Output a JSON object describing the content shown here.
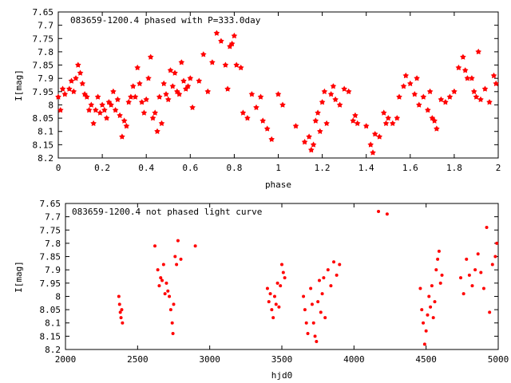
{
  "chart_data": [
    {
      "type": "scatter",
      "title": "083659-1200.4 phased with P=333.0day",
      "xlabel": "phase",
      "ylabel": "I[mag]",
      "xlim": [
        0,
        2
      ],
      "ylim": [
        7.65,
        8.2
      ],
      "y_inverted": true,
      "marker": "star",
      "color": "#ff0000",
      "xticks": [
        "0",
        "0.2",
        "0.4",
        "0.6",
        "0.8",
        "1",
        "1.2",
        "1.4",
        "1.6",
        "1.8",
        "2"
      ],
      "yticks": [
        "7.65",
        "7.7",
        "7.75",
        "7.8",
        "7.85",
        "7.9",
        "7.95",
        "8",
        "8.05",
        "8.1",
        "8.15",
        "8.2"
      ],
      "series": [
        {
          "points": [
            [
              0.0,
              7.97
            ],
            [
              0.01,
              8.02
            ],
            [
              0.02,
              7.94
            ],
            [
              0.03,
              7.96
            ],
            [
              0.05,
              7.94
            ],
            [
              0.06,
              7.91
            ],
            [
              0.07,
              7.95
            ],
            [
              0.08,
              7.9
            ],
            [
              0.09,
              7.85
            ],
            [
              0.1,
              7.88
            ],
            [
              0.11,
              7.92
            ],
            [
              0.12,
              7.96
            ],
            [
              0.13,
              7.97
            ],
            [
              0.14,
              8.02
            ],
            [
              0.15,
              8.0
            ],
            [
              0.16,
              8.07
            ],
            [
              0.17,
              8.02
            ],
            [
              0.18,
              7.97
            ],
            [
              0.19,
              8.03
            ],
            [
              0.2,
              8.0
            ],
            [
              0.21,
              8.02
            ],
            [
              0.22,
              8.05
            ],
            [
              0.23,
              7.99
            ],
            [
              0.24,
              8.0
            ],
            [
              0.25,
              7.95
            ],
            [
              0.26,
              8.02
            ],
            [
              0.27,
              7.98
            ],
            [
              0.28,
              8.04
            ],
            [
              0.29,
              8.12
            ],
            [
              0.3,
              8.06
            ],
            [
              0.31,
              8.08
            ],
            [
              0.32,
              7.99
            ],
            [
              0.33,
              7.97
            ],
            [
              0.34,
              7.93
            ],
            [
              0.35,
              7.97
            ],
            [
              0.36,
              7.86
            ],
            [
              0.37,
              7.92
            ],
            [
              0.38,
              7.99
            ],
            [
              0.39,
              8.03
            ],
            [
              0.4,
              7.98
            ],
            [
              0.41,
              7.9
            ],
            [
              0.42,
              7.82
            ],
            [
              0.43,
              8.05
            ],
            [
              0.44,
              8.03
            ],
            [
              0.45,
              8.1
            ],
            [
              0.46,
              7.97
            ],
            [
              0.47,
              8.07
            ],
            [
              0.48,
              7.92
            ],
            [
              0.49,
              7.96
            ],
            [
              0.5,
              7.98
            ],
            [
              0.51,
              7.87
            ],
            [
              0.52,
              7.93
            ],
            [
              0.53,
              7.88
            ],
            [
              0.54,
              7.95
            ],
            [
              0.55,
              7.96
            ],
            [
              0.56,
              7.84
            ],
            [
              0.57,
              7.91
            ],
            [
              0.58,
              7.94
            ],
            [
              0.59,
              7.93
            ],
            [
              0.6,
              7.9
            ],
            [
              0.61,
              8.01
            ],
            [
              0.64,
              7.91
            ],
            [
              0.66,
              7.81
            ],
            [
              0.68,
              7.95
            ],
            [
              0.7,
              7.84
            ],
            [
              0.72,
              7.73
            ],
            [
              0.74,
              7.76
            ],
            [
              0.76,
              7.85
            ],
            [
              0.77,
              7.94
            ],
            [
              0.78,
              7.78
            ],
            [
              0.79,
              7.77
            ],
            [
              0.8,
              7.74
            ],
            [
              0.81,
              7.85
            ],
            [
              0.83,
              7.86
            ],
            [
              0.84,
              8.03
            ],
            [
              0.86,
              8.05
            ],
            [
              0.88,
              7.96
            ],
            [
              0.9,
              8.01
            ],
            [
              0.92,
              7.97
            ],
            [
              0.93,
              8.06
            ],
            [
              0.95,
              8.09
            ],
            [
              0.97,
              8.13
            ],
            [
              1.0,
              7.96
            ],
            [
              1.02,
              8.0
            ],
            [
              1.08,
              8.08
            ],
            [
              1.12,
              8.14
            ],
            [
              1.14,
              8.12
            ],
            [
              1.15,
              8.17
            ],
            [
              1.16,
              8.15
            ],
            [
              1.17,
              8.06
            ],
            [
              1.18,
              8.03
            ],
            [
              1.19,
              8.1
            ],
            [
              1.2,
              7.99
            ],
            [
              1.21,
              7.95
            ],
            [
              1.22,
              8.07
            ],
            [
              1.24,
              7.96
            ],
            [
              1.25,
              7.93
            ],
            [
              1.26,
              7.98
            ],
            [
              1.28,
              8.0
            ],
            [
              1.3,
              7.94
            ],
            [
              1.32,
              7.95
            ],
            [
              1.34,
              8.06
            ],
            [
              1.35,
              8.04
            ],
            [
              1.36,
              8.07
            ],
            [
              1.4,
              8.08
            ],
            [
              1.42,
              8.15
            ],
            [
              1.43,
              8.18
            ],
            [
              1.44,
              8.11
            ],
            [
              1.46,
              8.12
            ],
            [
              1.48,
              8.03
            ],
            [
              1.49,
              8.07
            ],
            [
              1.5,
              8.05
            ],
            [
              1.52,
              8.07
            ],
            [
              1.54,
              8.05
            ],
            [
              1.55,
              7.97
            ],
            [
              1.57,
              7.93
            ],
            [
              1.58,
              7.89
            ],
            [
              1.6,
              7.92
            ],
            [
              1.62,
              7.96
            ],
            [
              1.63,
              7.9
            ],
            [
              1.64,
              8.0
            ],
            [
              1.66,
              7.97
            ],
            [
              1.68,
              8.02
            ],
            [
              1.69,
              7.95
            ],
            [
              1.7,
              8.05
            ],
            [
              1.71,
              8.06
            ],
            [
              1.72,
              8.09
            ],
            [
              1.74,
              7.98
            ],
            [
              1.76,
              7.99
            ],
            [
              1.78,
              7.97
            ],
            [
              1.8,
              7.95
            ],
            [
              1.82,
              7.86
            ],
            [
              1.84,
              7.82
            ],
            [
              1.85,
              7.87
            ],
            [
              1.86,
              7.9
            ],
            [
              1.88,
              7.9
            ],
            [
              1.89,
              7.95
            ],
            [
              1.9,
              7.97
            ],
            [
              1.91,
              7.8
            ],
            [
              1.92,
              7.98
            ],
            [
              1.94,
              7.94
            ],
            [
              1.96,
              7.99
            ],
            [
              1.98,
              7.89
            ],
            [
              1.99,
              7.92
            ]
          ]
        }
      ]
    },
    {
      "type": "scatter",
      "title": "083659-1200.4 not phased light curve",
      "xlabel": "hjd0",
      "ylabel": "I[mag]",
      "xlim": [
        2000,
        5000
      ],
      "ylim": [
        7.65,
        8.2
      ],
      "y_inverted": true,
      "marker": "dot",
      "color": "#ff0000",
      "xticks": [
        "2000",
        "2500",
        "3000",
        "3500",
        "4000",
        "4500",
        "5000"
      ],
      "yticks": [
        "7.65",
        "7.7",
        "7.75",
        "7.8",
        "7.85",
        "7.9",
        "7.95",
        "8",
        "8.05",
        "8.1",
        "8.15",
        "8.2"
      ],
      "series": [
        {
          "points": [
            [
              2370,
              8.0
            ],
            [
              2375,
              8.03
            ],
            [
              2380,
              8.06
            ],
            [
              2385,
              8.08
            ],
            [
              2390,
              8.05
            ],
            [
              2395,
              8.1
            ],
            [
              2620,
              7.81
            ],
            [
              2640,
              7.9
            ],
            [
              2650,
              7.96
            ],
            [
              2660,
              7.93
            ],
            [
              2670,
              7.94
            ],
            [
              2680,
              7.88
            ],
            [
              2690,
              7.99
            ],
            [
              2700,
              7.95
            ],
            [
              2710,
              7.98
            ],
            [
              2720,
              8.0
            ],
            [
              2730,
              8.05
            ],
            [
              2740,
              8.1
            ],
            [
              2745,
              8.14
            ],
            [
              2750,
              8.03
            ],
            [
              2760,
              7.85
            ],
            [
              2770,
              7.88
            ],
            [
              2780,
              7.79
            ],
            [
              2800,
              7.86
            ],
            [
              2900,
              7.81
            ],
            [
              3400,
              7.97
            ],
            [
              3410,
              8.02
            ],
            [
              3420,
              7.99
            ],
            [
              3430,
              8.05
            ],
            [
              3440,
              8.08
            ],
            [
              3450,
              8.0
            ],
            [
              3460,
              8.03
            ],
            [
              3470,
              7.95
            ],
            [
              3480,
              8.04
            ],
            [
              3490,
              7.96
            ],
            [
              3500,
              7.88
            ],
            [
              3510,
              7.91
            ],
            [
              3520,
              7.93
            ],
            [
              3650,
              8.0
            ],
            [
              3660,
              8.05
            ],
            [
              3670,
              8.1
            ],
            [
              3680,
              8.14
            ],
            [
              3700,
              7.97
            ],
            [
              3710,
              8.03
            ],
            [
              3720,
              8.1
            ],
            [
              3730,
              8.15
            ],
            [
              3740,
              8.17
            ],
            [
              3750,
              8.02
            ],
            [
              3760,
              7.94
            ],
            [
              3770,
              8.06
            ],
            [
              3780,
              7.99
            ],
            [
              3790,
              7.93
            ],
            [
              3800,
              8.08
            ],
            [
              3820,
              7.9
            ],
            [
              3840,
              7.96
            ],
            [
              3860,
              7.87
            ],
            [
              3880,
              7.92
            ],
            [
              3900,
              7.88
            ],
            [
              4170,
              7.68
            ],
            [
              4230,
              7.69
            ],
            [
              4460,
              7.97
            ],
            [
              4470,
              8.05
            ],
            [
              4480,
              8.1
            ],
            [
              4490,
              8.18
            ],
            [
              4500,
              8.13
            ],
            [
              4510,
              8.07
            ],
            [
              4520,
              8.0
            ],
            [
              4530,
              8.04
            ],
            [
              4540,
              7.96
            ],
            [
              4550,
              8.08
            ],
            [
              4560,
              8.02
            ],
            [
              4570,
              7.9
            ],
            [
              4580,
              7.86
            ],
            [
              4590,
              7.83
            ],
            [
              4600,
              7.95
            ],
            [
              4610,
              7.92
            ],
            [
              4740,
              7.93
            ],
            [
              4760,
              7.99
            ],
            [
              4780,
              7.86
            ],
            [
              4800,
              7.92
            ],
            [
              4820,
              7.96
            ],
            [
              4840,
              7.9
            ],
            [
              4860,
              7.84
            ],
            [
              4880,
              7.91
            ],
            [
              4900,
              7.97
            ],
            [
              4920,
              7.74
            ],
            [
              4940,
              8.06
            ],
            [
              4960,
              7.88
            ],
            [
              4980,
              7.85
            ],
            [
              4990,
              7.8
            ]
          ]
        }
      ]
    }
  ]
}
